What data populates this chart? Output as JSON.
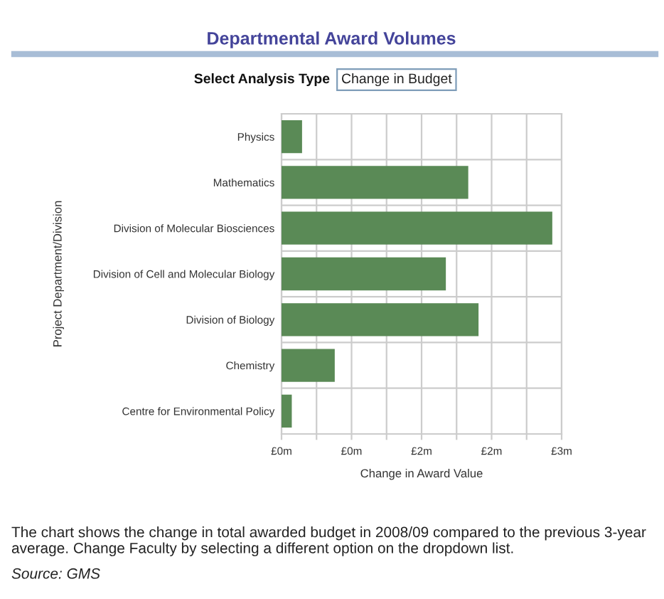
{
  "chart_data": {
    "type": "bar",
    "orientation": "horizontal",
    "title": "Departmental Award Volumes",
    "categories": [
      "Physics",
      "Mathematics",
      "Division of Molecular Biosciences",
      "Division of Cell and Molecular Biology",
      "Division of Biology",
      "Chemistry",
      "Centre for Environmental Policy"
    ],
    "values": [
      0.22,
      2.0,
      2.9,
      1.76,
      2.11,
      0.57,
      0.11
    ],
    "color": "#5a8a56",
    "xlim": [
      0,
      3
    ],
    "xticks": [
      {
        "value": 0,
        "label": "£0m"
      },
      {
        "value": 0.375,
        "label": null
      },
      {
        "value": 0.75,
        "label": "£0m"
      },
      {
        "value": 1.125,
        "label": null
      },
      {
        "value": 1.5,
        "label": "£2m"
      },
      {
        "value": 1.875,
        "label": null
      },
      {
        "value": 2.25,
        "label": "£2m"
      },
      {
        "value": 2.625,
        "label": null
      },
      {
        "value": 3,
        "label": "£3m"
      }
    ],
    "xlabel": "Change in Award Value",
    "ylabel": "Project Department/Division",
    "grid": true,
    "annotations": [
      "Select Analysis Type",
      "Change in Budget",
      "The chart shows the change in total awarded budget in 2008/09 compared to the previous 3-year average. Change Faculty by selecting a different option on the dropdown list.",
      "Source: GMS"
    ]
  }
}
